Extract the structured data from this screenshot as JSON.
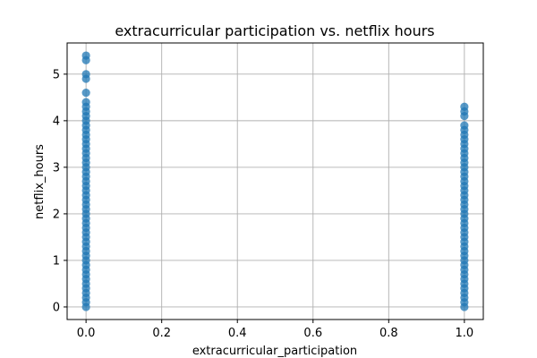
{
  "chart_data": {
    "type": "scatter",
    "title": "extracurricular participation vs. netflix hours",
    "xlabel": "extracurricular_participation",
    "ylabel": "netflix_hours",
    "xlim": [
      -0.05,
      1.05
    ],
    "ylim": [
      -0.27,
      5.67
    ],
    "grid": true,
    "x_ticks": [
      "0.0",
      "0.2",
      "0.4",
      "0.6",
      "0.8",
      "1.0"
    ],
    "y_ticks": [
      "0",
      "1",
      "2",
      "3",
      "4",
      "5"
    ],
    "color": "#1f77b4",
    "series": [
      {
        "x": 0,
        "y": [
          0.0,
          0.1,
          0.2,
          0.3,
          0.4,
          0.5,
          0.6,
          0.7,
          0.8,
          0.9,
          1.0,
          1.1,
          1.2,
          1.3,
          1.4,
          1.5,
          1.6,
          1.7,
          1.8,
          1.9,
          2.0,
          2.1,
          2.2,
          2.3,
          2.4,
          2.5,
          2.6,
          2.7,
          2.8,
          2.9,
          3.0,
          3.1,
          3.2,
          3.3,
          3.4,
          3.5,
          3.6,
          3.7,
          3.8,
          3.9,
          4.0,
          4.1,
          4.2,
          4.3,
          4.4,
          4.6,
          4.9,
          5.0,
          5.3,
          5.4
        ]
      },
      {
        "x": 1,
        "y": [
          0.0,
          0.1,
          0.2,
          0.3,
          0.4,
          0.5,
          0.6,
          0.7,
          0.8,
          0.9,
          1.0,
          1.1,
          1.2,
          1.3,
          1.4,
          1.5,
          1.6,
          1.7,
          1.8,
          1.9,
          2.0,
          2.1,
          2.2,
          2.3,
          2.4,
          2.5,
          2.6,
          2.7,
          2.8,
          2.9,
          3.0,
          3.1,
          3.2,
          3.3,
          3.4,
          3.5,
          3.6,
          3.7,
          3.8,
          3.9,
          4.1,
          4.2,
          4.3
        ]
      }
    ]
  }
}
